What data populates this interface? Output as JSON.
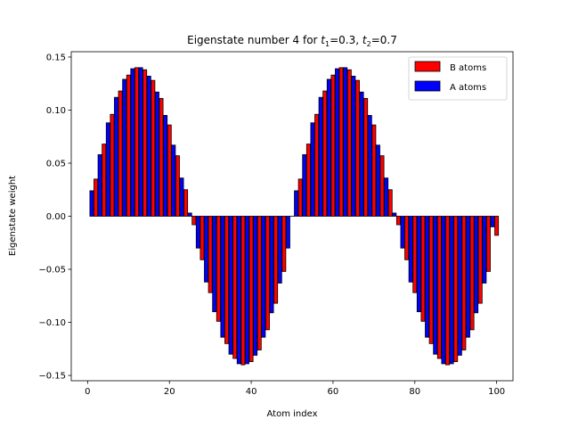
{
  "chart_data": {
    "type": "bar",
    "title": "Eigenstate number 4 for t₁=0.3, t₂=0.7",
    "title_parts": {
      "prefix": "Eigenstate number 4 for ",
      "t1_sym": "t",
      "t1_sub": "1",
      "t1_val": "=0.3, ",
      "t2_sym": "t",
      "t2_sub": "2",
      "t2_val": "=0.7"
    },
    "xlabel": "Atom index",
    "ylabel": "Eigenstate weight",
    "xlim": [
      -4,
      104
    ],
    "ylim": [
      -0.155,
      0.155
    ],
    "xticks": [
      0,
      20,
      40,
      60,
      80,
      100
    ],
    "yticks": [
      -0.15,
      -0.1,
      -0.05,
      0.0,
      0.05,
      0.1,
      0.15
    ],
    "ytick_labels": [
      "−0.15",
      "−0.10",
      "−0.05",
      "0.00",
      "0.05",
      "0.10",
      "0.15"
    ],
    "xtick_labels": [
      "0",
      "20",
      "40",
      "60",
      "80",
      "100"
    ],
    "legend_position": "top-right",
    "series": [
      {
        "name": "B atoms",
        "color": "#ff0000",
        "x": [
          2,
          4,
          6,
          8,
          10,
          12,
          14,
          16,
          18,
          20,
          22,
          24,
          26,
          28,
          30,
          32,
          34,
          36,
          38,
          40,
          42,
          44,
          46,
          48,
          50,
          52,
          54,
          56,
          58,
          60,
          62,
          64,
          66,
          68,
          70,
          72,
          74,
          76,
          78,
          80,
          82,
          84,
          86,
          88,
          90,
          92,
          94,
          96,
          98,
          100
        ],
        "values": [
          0.035,
          0.068,
          0.096,
          0.118,
          0.133,
          0.14,
          0.138,
          0.128,
          0.111,
          0.086,
          0.057,
          0.025,
          -0.008,
          -0.041,
          -0.072,
          -0.099,
          -0.12,
          -0.134,
          -0.14,
          -0.137,
          -0.126,
          -0.107,
          -0.082,
          -0.052,
          0.0,
          0.035,
          0.068,
          0.096,
          0.118,
          0.133,
          0.14,
          0.138,
          0.128,
          0.111,
          0.086,
          0.057,
          0.025,
          -0.008,
          -0.041,
          -0.072,
          -0.099,
          -0.12,
          -0.134,
          -0.14,
          -0.137,
          -0.126,
          -0.107,
          -0.082,
          -0.052,
          -0.018
        ]
      },
      {
        "name": "A atoms",
        "color": "#0000ff",
        "x": [
          1,
          3,
          5,
          7,
          9,
          11,
          13,
          15,
          17,
          19,
          21,
          23,
          25,
          27,
          29,
          31,
          33,
          35,
          37,
          39,
          41,
          43,
          45,
          47,
          49,
          51,
          53,
          55,
          57,
          59,
          61,
          63,
          65,
          67,
          69,
          71,
          73,
          75,
          77,
          79,
          81,
          83,
          85,
          87,
          89,
          91,
          93,
          95,
          97,
          99
        ],
        "values": [
          0.024,
          0.058,
          0.088,
          0.112,
          0.129,
          0.139,
          0.14,
          0.132,
          0.117,
          0.095,
          0.067,
          0.036,
          0.003,
          -0.03,
          -0.062,
          -0.09,
          -0.114,
          -0.13,
          -0.139,
          -0.139,
          -0.131,
          -0.114,
          -0.091,
          -0.063,
          -0.03,
          0.024,
          0.058,
          0.088,
          0.112,
          0.129,
          0.139,
          0.14,
          0.132,
          0.117,
          0.095,
          0.067,
          0.036,
          0.003,
          -0.03,
          -0.062,
          -0.09,
          -0.114,
          -0.13,
          -0.139,
          -0.139,
          -0.131,
          -0.114,
          -0.091,
          -0.063,
          -0.01
        ]
      }
    ]
  }
}
